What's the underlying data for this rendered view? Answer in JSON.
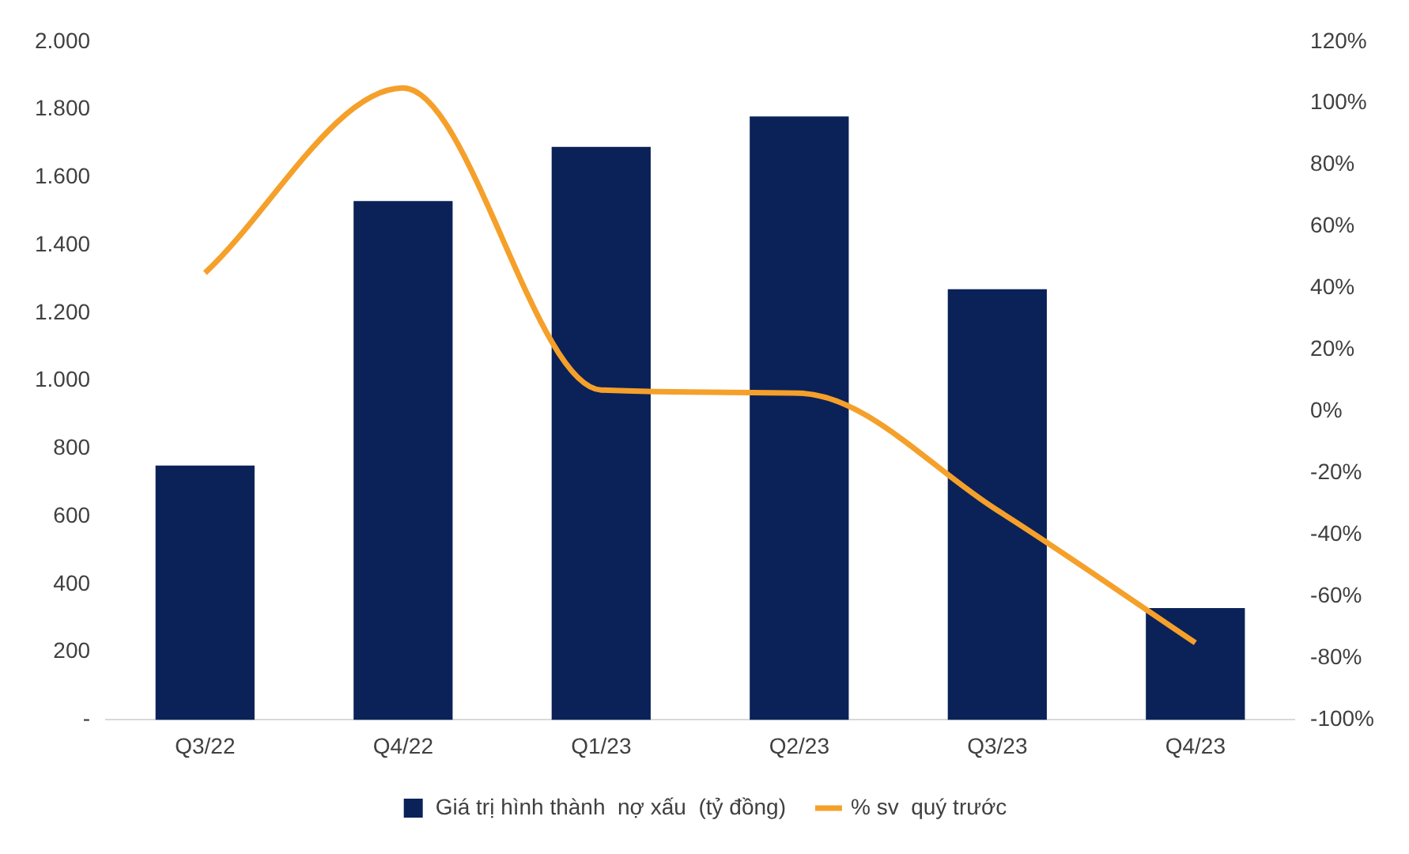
{
  "chart_data": {
    "type": "bar",
    "categories": [
      "Q3/22",
      "Q4/22",
      "Q1/23",
      "Q2/23",
      "Q3/23",
      "Q4/23"
    ],
    "series": [
      {
        "name": "Giá trị hình thành  nợ xấu  (tỷ đồng)",
        "color": "#0b2258",
        "values": [
          750,
          1530,
          1690,
          1780,
          1270,
          330
        ]
      },
      {
        "type": "line",
        "name": "% sv  quý trước",
        "color": "#f5a02a",
        "axis": "y2",
        "values": [
          45,
          105,
          7,
          6,
          -32,
          -75
        ]
      }
    ],
    "ylim": [
      0,
      2000
    ],
    "yticks": [
      {
        "value": 0,
        "label": "-"
      },
      200,
      400,
      600,
      800,
      {
        "value": 1000,
        "label": "1.000"
      },
      {
        "value": 1200,
        "label": "1.200"
      },
      {
        "value": 1400,
        "label": "1.400"
      },
      {
        "value": 1600,
        "label": "1.600"
      },
      {
        "value": 1800,
        "label": "1.800"
      },
      {
        "value": 2000,
        "label": "2.000"
      }
    ],
    "y2lim": [
      -100,
      120
    ],
    "y2ticks": [
      {
        "value": -100,
        "label": "-100%"
      },
      {
        "value": -80,
        "label": "-80%"
      },
      {
        "value": -60,
        "label": "-60%"
      },
      {
        "value": -40,
        "label": "-40%"
      },
      {
        "value": -20,
        "label": "-20%"
      },
      {
        "value": 0,
        "label": "0%"
      },
      {
        "value": 20,
        "label": "20%"
      },
      {
        "value": 40,
        "label": "40%"
      },
      {
        "value": 60,
        "label": "60%"
      },
      {
        "value": 80,
        "label": "80%"
      },
      {
        "value": 100,
        "label": "100%"
      },
      {
        "value": 120,
        "label": "120%"
      }
    ],
    "legend": "bottom"
  }
}
